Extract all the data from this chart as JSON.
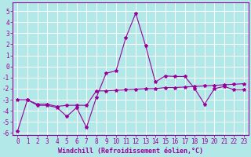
{
  "xlabel": "Windchill (Refroidissement éolien,°C)",
  "background_color": "#b2e8e8",
  "grid_color": "#ffffff",
  "line_color": "#990099",
  "xlim": [
    -0.5,
    23.5
  ],
  "ylim": [
    -6.2,
    5.8
  ],
  "xticks": [
    0,
    1,
    2,
    3,
    4,
    5,
    6,
    7,
    8,
    9,
    10,
    11,
    12,
    13,
    14,
    15,
    16,
    17,
    18,
    19,
    20,
    21,
    22,
    23
  ],
  "yticks": [
    -6,
    -5,
    -4,
    -3,
    -2,
    -1,
    0,
    1,
    2,
    3,
    4,
    5
  ],
  "x": [
    0,
    1,
    2,
    3,
    4,
    5,
    6,
    7,
    8,
    9,
    10,
    11,
    12,
    13,
    14,
    15,
    16,
    17,
    18,
    19,
    20,
    21,
    22,
    23
  ],
  "line1_y": [
    -5.8,
    -3.0,
    -3.5,
    -3.5,
    -3.7,
    -4.5,
    -3.7,
    -5.5,
    -2.8,
    -0.6,
    -0.4,
    2.6,
    4.8,
    1.9,
    -1.4,
    -0.85,
    -0.9,
    -0.9,
    -2.0,
    -3.4,
    -2.0,
    -1.8,
    -2.1,
    -2.1
  ],
  "line2_y": [
    -3.0,
    -3.0,
    -3.4,
    -3.4,
    -3.6,
    -3.5,
    -3.5,
    -3.5,
    -2.2,
    -2.2,
    -2.15,
    -2.1,
    -2.05,
    -2.0,
    -2.0,
    -1.9,
    -1.9,
    -1.85,
    -1.8,
    -1.75,
    -1.7,
    -1.65,
    -1.6,
    -1.55
  ],
  "font_size": 6,
  "tick_fontsize": 5.5,
  "marker": "*",
  "markersize": 3
}
